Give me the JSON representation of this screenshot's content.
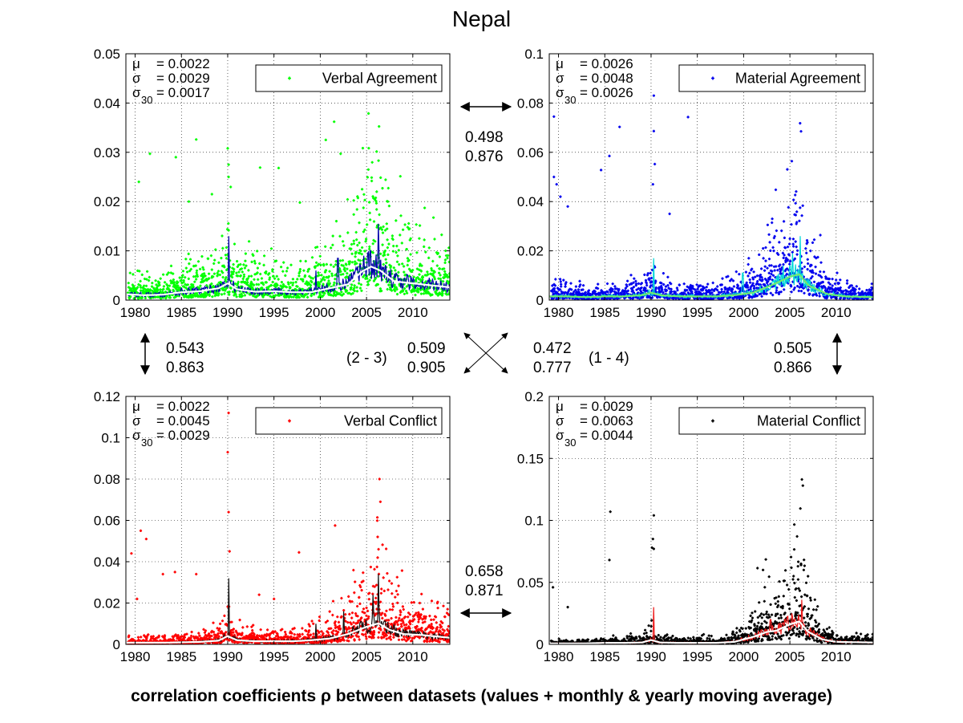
{
  "title": "Nepal",
  "footer": "correlation coefficients ρ between datasets (values + monthly & yearly moving average)",
  "correlations": {
    "top": [
      "0.498",
      "0.876"
    ],
    "bottom": [
      "0.658",
      "0.871"
    ],
    "left": [
      "0.543",
      "0.863"
    ],
    "right": [
      "0.505",
      "0.866"
    ],
    "diag_23": [
      "0.509",
      "0.905"
    ],
    "diag_14": [
      "0.472",
      "0.777"
    ],
    "label_23": "(2 - 3)",
    "label_14": "(1 - 4)"
  },
  "chart_data": [
    {
      "type": "scatter",
      "legend": "Verbal Agreement",
      "color": "#00ff00",
      "ma_monthly_color": "#0000aa",
      "ma_yearly_color": "#ffffff",
      "stats": {
        "mu_label": "μ",
        "mu": "= 0.0022",
        "sigma_label": "σ",
        "sigma": "= 0.0029",
        "sigma30_label": "σ",
        "sigma30_sub": "30",
        "sigma30": "= 0.0017"
      },
      "xlim": [
        1979,
        2014
      ],
      "ylim": [
        0,
        0.05
      ],
      "xticks": [
        1980,
        1985,
        1990,
        1995,
        2000,
        2005,
        2010
      ],
      "yticks": [
        0,
        0.01,
        0.02,
        0.03,
        0.04,
        0.05
      ],
      "ytick_labels": [
        "0",
        "0.01",
        "0.02",
        "0.03",
        "0.04",
        "0.05"
      ],
      "yearly_avg": [
        [
          1979,
          0.0012
        ],
        [
          1981,
          0.001
        ],
        [
          1983,
          0.0011
        ],
        [
          1985,
          0.0016
        ],
        [
          1987,
          0.0018
        ],
        [
          1989,
          0.0024
        ],
        [
          1990,
          0.0034
        ],
        [
          1991,
          0.0022
        ],
        [
          1993,
          0.0017
        ],
        [
          1995,
          0.0018
        ],
        [
          1997,
          0.0016
        ],
        [
          1999,
          0.0016
        ],
        [
          2001,
          0.0024
        ],
        [
          2003,
          0.0032
        ],
        [
          2004.5,
          0.0058
        ],
        [
          2005.5,
          0.0068
        ],
        [
          2006.5,
          0.006
        ],
        [
          2008,
          0.0038
        ],
        [
          2010,
          0.0034
        ],
        [
          2012,
          0.003
        ],
        [
          2014,
          0.0026
        ]
      ],
      "outliers": [
        [
          1980.4,
          0.024
        ],
        [
          1981.6,
          0.0297
        ],
        [
          1984.4,
          0.029
        ],
        [
          1986.6,
          0.0326
        ],
        [
          1990.0,
          0.0308
        ],
        [
          1990.1,
          0.0275
        ],
        [
          1990.1,
          0.025
        ],
        [
          1993.5,
          0.0269
        ],
        [
          1995.5,
          0.0268
        ],
        [
          2000.6,
          0.0325
        ],
        [
          2001.5,
          0.0362
        ],
        [
          2002.2,
          0.0297
        ],
        [
          2005.2,
          0.0265
        ],
        [
          2006.3,
          0.0283
        ],
        [
          2006.1,
          0.022
        ],
        [
          2005.9,
          0.0204
        ],
        [
          1985.8,
          0.02
        ],
        [
          1988.3,
          0.0215
        ],
        [
          1997.8,
          0.0198
        ],
        [
          2007.3,
          0.02
        ]
      ],
      "spikes": [
        [
          1990.1,
          0.013
        ],
        [
          2001.9,
          0.0085
        ],
        [
          2004.7,
          0.009
        ],
        [
          2006.3,
          0.0155
        ],
        [
          1999.5,
          0.006
        ]
      ],
      "seed": 11
    },
    {
      "type": "scatter",
      "legend": "Material Agreement",
      "color": "#0000ee",
      "ma_monthly_color": "#00d8d8",
      "ma_yearly_color": "#6fea6f",
      "stats": {
        "mu_label": "μ",
        "mu": "= 0.0026",
        "sigma_label": "σ",
        "sigma": "= 0.0048",
        "sigma30_label": "σ",
        "sigma30_sub": "30",
        "sigma30": "= 0.0026"
      },
      "xlim": [
        1979,
        2014
      ],
      "ylim": [
        0,
        0.1
      ],
      "xticks": [
        1980,
        1985,
        1990,
        1995,
        2000,
        2005,
        2010
      ],
      "yticks": [
        0,
        0.02,
        0.04,
        0.06,
        0.08,
        0.1
      ],
      "ytick_labels": [
        "0",
        "0.02",
        "0.04",
        "0.06",
        "0.08",
        "0.1"
      ],
      "yearly_avg": [
        [
          1979,
          0.0015
        ],
        [
          1981,
          0.0015
        ],
        [
          1983,
          0.0012
        ],
        [
          1985,
          0.0015
        ],
        [
          1987,
          0.0015
        ],
        [
          1989,
          0.002
        ],
        [
          1990,
          0.003
        ],
        [
          1991,
          0.002
        ],
        [
          1993,
          0.0015
        ],
        [
          1995,
          0.0015
        ],
        [
          1997,
          0.0015
        ],
        [
          1999,
          0.002
        ],
        [
          2001,
          0.003
        ],
        [
          2003,
          0.006
        ],
        [
          2005,
          0.0095
        ],
        [
          2006,
          0.0105
        ],
        [
          2007,
          0.006
        ],
        [
          2009,
          0.0025
        ],
        [
          2011,
          0.0015
        ],
        [
          2014,
          0.0012
        ]
      ],
      "outliers": [
        [
          1979.5,
          0.0745
        ],
        [
          1979.5,
          0.05
        ],
        [
          1979.8,
          0.047
        ],
        [
          1980.2,
          0.042
        ],
        [
          1986.6,
          0.0703
        ],
        [
          1985.5,
          0.0585
        ],
        [
          1984.6,
          0.0528
        ],
        [
          1990.3,
          0.0686
        ],
        [
          1990.3,
          0.083
        ],
        [
          1990.4,
          0.0552
        ],
        [
          1994.0,
          0.0743
        ],
        [
          2006.1,
          0.0718
        ],
        [
          2006.2,
          0.0685
        ],
        [
          2005.4,
          0.0407
        ],
        [
          2006.1,
          0.0375
        ],
        [
          1990.2,
          0.047
        ],
        [
          1981.0,
          0.038
        ],
        [
          1992.0,
          0.035
        ]
      ],
      "spikes": [
        [
          1990.3,
          0.017
        ],
        [
          2006.1,
          0.026
        ],
        [
          2005.3,
          0.019
        ],
        [
          2004.3,
          0.014
        ],
        [
          1999.9,
          0.011
        ]
      ],
      "seed": 23
    },
    {
      "type": "scatter",
      "legend": "Verbal Conflict",
      "color": "#ff0000",
      "ma_monthly_color": "#111111",
      "ma_yearly_color": "#ffffff",
      "stats": {
        "mu_label": "μ",
        "mu": "= 0.0022",
        "sigma_label": "σ",
        "sigma": "= 0.0045",
        "sigma30_label": "σ",
        "sigma30_sub": "30",
        "sigma30": "= 0.0029"
      },
      "xlim": [
        1979,
        2014
      ],
      "ylim": [
        0,
        0.12
      ],
      "xticks": [
        1980,
        1985,
        1990,
        1995,
        2000,
        2005,
        2010
      ],
      "yticks": [
        0,
        0.02,
        0.04,
        0.06,
        0.08,
        0.1,
        0.12
      ],
      "ytick_labels": [
        "0",
        "0.02",
        "0.04",
        "0.06",
        "0.08",
        "0.1",
        "0.12"
      ],
      "yearly_avg": [
        [
          1979,
          0.0008
        ],
        [
          1981,
          0.0008
        ],
        [
          1983,
          0.0008
        ],
        [
          1985,
          0.001
        ],
        [
          1987,
          0.0012
        ],
        [
          1989,
          0.0018
        ],
        [
          1990,
          0.004
        ],
        [
          1991,
          0.002
        ],
        [
          1993,
          0.0015
        ],
        [
          1995,
          0.0015
        ],
        [
          1997,
          0.0015
        ],
        [
          1999,
          0.002
        ],
        [
          2001,
          0.0028
        ],
        [
          2003,
          0.005
        ],
        [
          2005,
          0.0085
        ],
        [
          2006.3,
          0.0102
        ],
        [
          2007.5,
          0.007
        ],
        [
          2009,
          0.005
        ],
        [
          2011,
          0.0045
        ],
        [
          2014,
          0.0032
        ]
      ],
      "outliers": [
        [
          1979.6,
          0.044
        ],
        [
          1980.6,
          0.055
        ],
        [
          1981.2,
          0.051
        ],
        [
          1980.2,
          0.022
        ],
        [
          1983.0,
          0.034
        ],
        [
          1984.3,
          0.035
        ],
        [
          1986.6,
          0.034
        ],
        [
          1990.0,
          0.093
        ],
        [
          1990.1,
          0.064
        ],
        [
          1990.2,
          0.045
        ],
        [
          1990.1,
          0.112
        ],
        [
          1997.7,
          0.0445
        ],
        [
          2001.6,
          0.0575
        ],
        [
          2006.4,
          0.08
        ],
        [
          2006.5,
          0.069
        ],
        [
          2006.2,
          0.052
        ],
        [
          2006.3,
          0.046
        ],
        [
          2006.2,
          0.042
        ],
        [
          1993.4,
          0.024
        ],
        [
          1995.0,
          0.022
        ]
      ],
      "spikes": [
        [
          1990.1,
          0.032
        ],
        [
          2006.3,
          0.034
        ],
        [
          2005.7,
          0.024
        ],
        [
          2002.5,
          0.016
        ],
        [
          1999.5,
          0.01
        ]
      ],
      "seed": 37
    },
    {
      "type": "scatter",
      "legend": "Material Conflict",
      "color": "#000000",
      "ma_monthly_color": "#ee1c1c",
      "ma_yearly_color": "#ffffff",
      "stats": {
        "mu_label": "μ",
        "mu": "= 0.0029",
        "sigma_label": "σ",
        "sigma": "= 0.0063",
        "sigma30_label": "σ",
        "sigma30_sub": "30",
        "sigma30": "= 0.0044"
      },
      "xlim": [
        1979,
        2014
      ],
      "ylim": [
        0,
        0.2
      ],
      "xticks": [
        1980,
        1985,
        1990,
        1995,
        2000,
        2005,
        2010
      ],
      "yticks": [
        0,
        0.05,
        0.1,
        0.15,
        0.2
      ],
      "ytick_labels": [
        "0",
        "0.05",
        "0.1",
        "0.15",
        "0.2"
      ],
      "yearly_avg": [
        [
          1979,
          0.0008
        ],
        [
          1981,
          0.0008
        ],
        [
          1983,
          0.0008
        ],
        [
          1985,
          0.0012
        ],
        [
          1987,
          0.0012
        ],
        [
          1989,
          0.0015
        ],
        [
          1990,
          0.0035
        ],
        [
          1991,
          0.0015
        ],
        [
          1993,
          0.0012
        ],
        [
          1995,
          0.0012
        ],
        [
          1997,
          0.0012
        ],
        [
          1999,
          0.002
        ],
        [
          2001,
          0.006
        ],
        [
          2002.5,
          0.01
        ],
        [
          2003.5,
          0.011
        ],
        [
          2005,
          0.016
        ],
        [
          2006,
          0.0185
        ],
        [
          2007,
          0.01
        ],
        [
          2008.5,
          0.004
        ],
        [
          2010,
          0.002
        ],
        [
          2014,
          0.0015
        ]
      ],
      "outliers": [
        [
          1979.4,
          0.046
        ],
        [
          1985.6,
          0.107
        ],
        [
          1985.5,
          0.068
        ],
        [
          1990.3,
          0.104
        ],
        [
          1990.2,
          0.085
        ],
        [
          1990.3,
          0.077
        ],
        [
          1990.1,
          0.078
        ],
        [
          2002.4,
          0.0685
        ],
        [
          2002.1,
          0.06
        ],
        [
          2001.5,
          0.0615
        ],
        [
          2006.3,
          0.133
        ],
        [
          2006.4,
          0.128
        ],
        [
          2006.2,
          0.065
        ],
        [
          2006.5,
          0.06
        ],
        [
          2005.4,
          0.055
        ],
        [
          1981.0,
          0.03
        ]
      ],
      "spikes": [
        [
          1990.3,
          0.03
        ],
        [
          2006.3,
          0.036
        ],
        [
          2005.2,
          0.025
        ],
        [
          2002.9,
          0.02
        ],
        [
          2003.8,
          0.017
        ]
      ],
      "seed": 53
    }
  ]
}
